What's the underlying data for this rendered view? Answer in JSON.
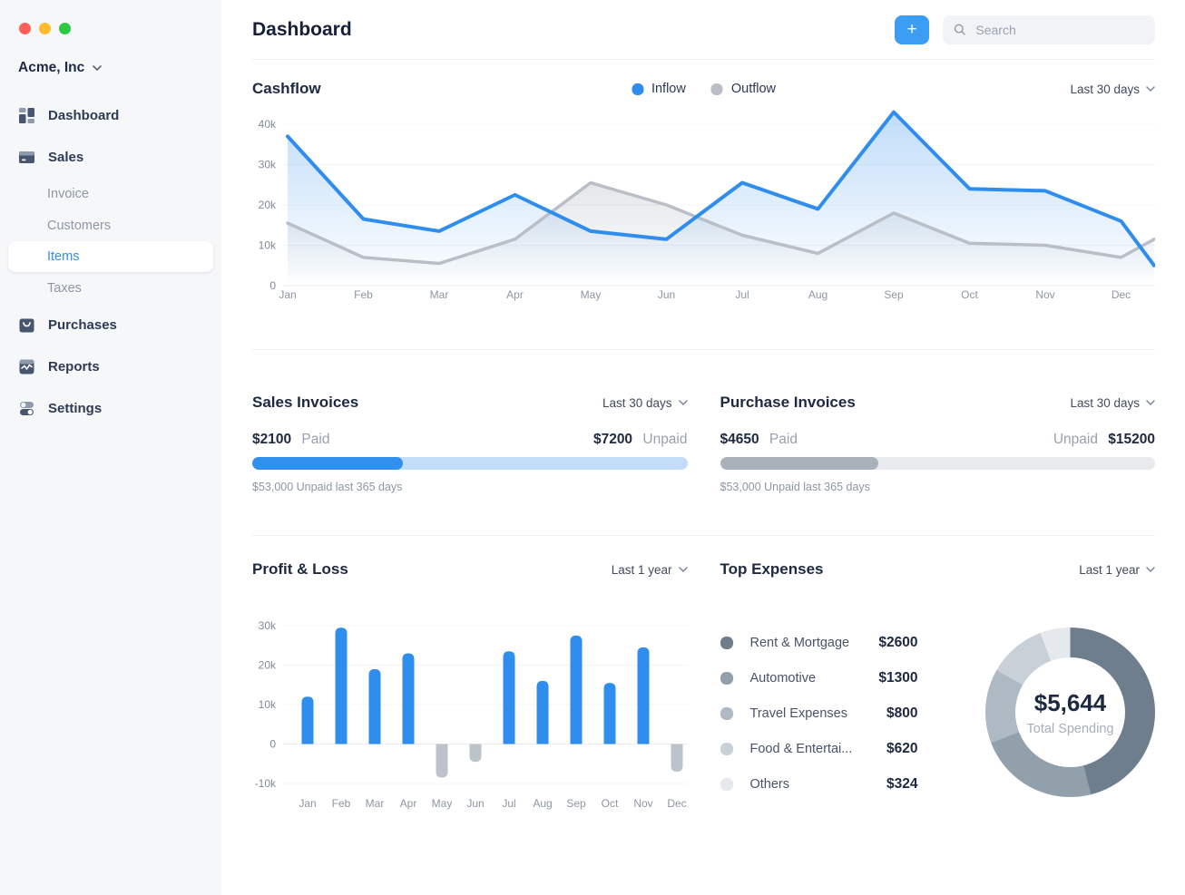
{
  "colors": {
    "accent_blue": "#2F8DED",
    "add_button_blue": "#3B9DF3",
    "sales_bar_fill": "#3090EE",
    "sales_bar_track": "#C3DCF8",
    "purchase_bar_fill": "#A9B2BB",
    "purchase_bar_track": "#E8EAEE",
    "outflow_gray": "#BABFC7",
    "negative_bar_gray": "#BCC3CA",
    "traffic_red": "#FF5F57",
    "traffic_yellow": "#FEBC2E",
    "traffic_green": "#2ACB42"
  },
  "sidebar": {
    "company": "Acme, Inc",
    "items": [
      {
        "label": "Dashboard"
      },
      {
        "label": "Sales"
      },
      {
        "label": "Purchases"
      },
      {
        "label": "Reports"
      },
      {
        "label": "Settings"
      }
    ],
    "sales_sub": [
      {
        "label": "Invoice",
        "active": false
      },
      {
        "label": "Customers",
        "active": false
      },
      {
        "label": "Items",
        "active": true
      },
      {
        "label": "Taxes",
        "active": false
      }
    ]
  },
  "header": {
    "title": "Dashboard",
    "add_button_label": "+",
    "search_placeholder": "Search",
    "search_value": ""
  },
  "cashflow": {
    "title": "Cashflow",
    "range": "Last 30 days"
  },
  "sales_invoices": {
    "title": "Sales Invoices",
    "range": "Last 30 days",
    "paid_value": "$2100",
    "paid_label": "Paid",
    "unpaid_value": "$7200",
    "unpaid_label": "Unpaid",
    "fill_pct": 34.6,
    "caption": "$53,000 Unpaid last 365 days"
  },
  "purchase_invoices": {
    "title": "Purchase Invoices",
    "range": "Last 30 days",
    "paid_value": "$4650",
    "paid_label": "Paid",
    "unpaid_label": "Unpaid",
    "unpaid_value": "$15200",
    "fill_pct": 36.4,
    "caption": "$53,000 Unpaid last 365 days"
  },
  "pnl": {
    "title": "Profit & Loss",
    "range": "Last 1 year"
  },
  "top_expenses": {
    "title": "Top Expenses",
    "range": "Last 1 year",
    "items": [
      {
        "label": "Rent & Mortgage",
        "value": "$2600"
      },
      {
        "label": "Automotive",
        "value": "$1300"
      },
      {
        "label": "Travel Expenses",
        "value": "$800"
      },
      {
        "label": "Food & Entertai...",
        "value": "$620"
      },
      {
        "label": "Others",
        "value": "$324"
      }
    ],
    "total": "$5,644",
    "total_label": "Total Spending"
  },
  "chart_data": [
    {
      "id": "cashflow",
      "type": "line",
      "title": "Cashflow",
      "x": [
        "Jan",
        "Feb",
        "Mar",
        "Apr",
        "May",
        "Jun",
        "Jul",
        "Aug",
        "Sep",
        "Oct",
        "Nov",
        "Dec"
      ],
      "series": [
        {
          "name": "Inflow",
          "color": "#2F8DED",
          "values": [
            37000,
            16500,
            13500,
            22500,
            13500,
            11500,
            25500,
            19000,
            43000,
            24000,
            23500,
            16000
          ],
          "trailing_value": 5000
        },
        {
          "name": "Outflow",
          "color": "#BABFC7",
          "values": [
            15500,
            7000,
            5500,
            11500,
            25500,
            20000,
            12500,
            8000,
            18000,
            10500,
            10000,
            7000
          ],
          "trailing_value": 11500
        }
      ],
      "trailing_x_fraction": 0.44,
      "ylim": [
        0,
        40000
      ],
      "yticks": [
        0,
        10000,
        20000,
        30000,
        40000
      ],
      "legend_position": "top-center",
      "grid": true
    },
    {
      "id": "profit_loss",
      "type": "bar",
      "title": "Profit & Loss",
      "categories": [
        "Jan",
        "Feb",
        "Mar",
        "Apr",
        "May",
        "Jun",
        "Jul",
        "Aug",
        "Sep",
        "Oct",
        "Nov",
        "Dec"
      ],
      "values": [
        12000,
        29500,
        19000,
        23000,
        -8500,
        -4500,
        23500,
        16000,
        27500,
        15500,
        24500,
        -7000
      ],
      "positive_color": "#2F8DED",
      "negative_color": "#BCC3CA",
      "ylim": [
        -10000,
        30000
      ],
      "yticks": [
        -10000,
        0,
        10000,
        20000,
        30000
      ],
      "grid": true
    },
    {
      "id": "top_expenses",
      "type": "pie",
      "title": "Top Expenses",
      "labels": [
        "Rent & Mortgage",
        "Automotive",
        "Travel Expenses",
        "Food & Entertai...",
        "Others"
      ],
      "values": [
        2600,
        1300,
        800,
        620,
        324
      ],
      "colors": [
        "#6F7E8D",
        "#92A0AC",
        "#AEB9C3",
        "#C9D1D8",
        "#E5E8EC"
      ],
      "center_total": "$5,644",
      "center_label": "Total Spending"
    }
  ]
}
